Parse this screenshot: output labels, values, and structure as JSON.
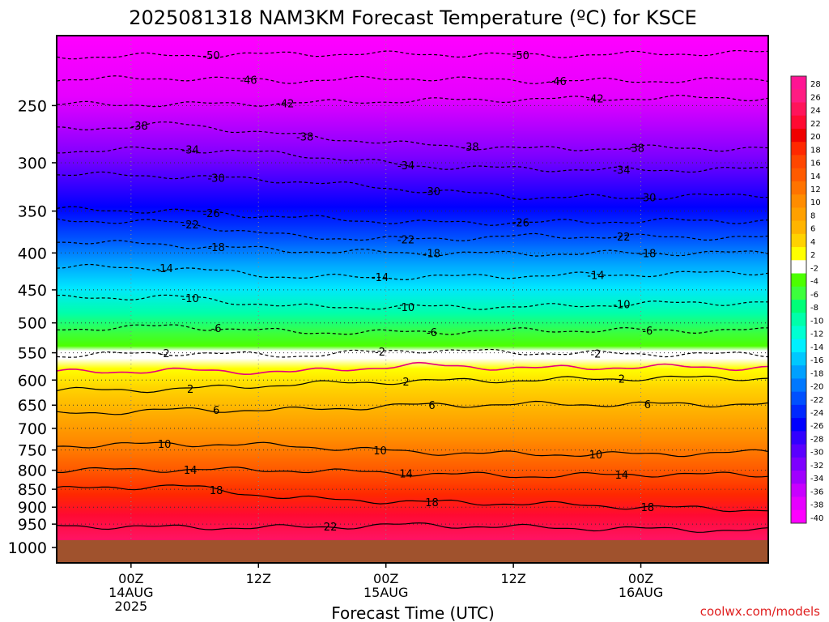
{
  "chart_data": {
    "type": "heatmap",
    "title": "2025081318 NAM3KM Forecast Temperature (ºC) for KSCE",
    "xlabel": "Forecast Time (UTC)",
    "ylabel": "",
    "credit": "coolwx.com/models",
    "x_range_hours": [
      -7,
      60
    ],
    "x_ticks": [
      {
        "hour": 0,
        "lines": [
          "00Z",
          "14AUG",
          "2025"
        ]
      },
      {
        "hour": 12,
        "lines": [
          "12Z"
        ]
      },
      {
        "hour": 24,
        "lines": [
          "00Z",
          "15AUG"
        ]
      },
      {
        "hour": 36,
        "lines": [
          "12Z"
        ]
      },
      {
        "hour": 48,
        "lines": [
          "00Z",
          "16AUG"
        ]
      }
    ],
    "y_axis": {
      "scale": "log-pressure",
      "range_hpa": [
        1000,
        200
      ],
      "ticks": [
        250,
        300,
        350,
        400,
        450,
        500,
        550,
        600,
        650,
        700,
        750,
        800,
        850,
        900,
        950,
        1000
      ]
    },
    "colorbar": {
      "labels": [
        "28",
        "26",
        "24",
        "22",
        "20",
        "18",
        "16",
        "14",
        "12",
        "10",
        "8",
        "6",
        "4",
        "2",
        "-2",
        "-4",
        "-6",
        "-8",
        "-10",
        "-12",
        "-14",
        "-16",
        "-18",
        "-20",
        "-22",
        "-24",
        "-26",
        "-28",
        "-30",
        "-32",
        "-34",
        "-36",
        "-38",
        "-40"
      ],
      "colors": [
        "#ff1493",
        "#ff1c82",
        "#ff145a",
        "#ff0a32",
        "#f00000",
        "#ff2800",
        "#ff4600",
        "#ff5a00",
        "#ff7300",
        "#ff8c00",
        "#ffa000",
        "#ffb400",
        "#ffd200",
        "#ffff00",
        "#ffffff",
        "#4cff00",
        "#3cff3c",
        "#00ff78",
        "#00ffaa",
        "#00ffd2",
        "#00f0ff",
        "#00c8ff",
        "#00a0ff",
        "#0078ff",
        "#0050ff",
        "#0028ff",
        "#0000ff",
        "#3200ff",
        "#5a00ff",
        "#7d00ff",
        "#a000ff",
        "#c800ff",
        "#e600ff",
        "#ff00ff"
      ]
    },
    "contours": [
      {
        "value": -50,
        "style": "dashed",
        "pressure_hpa": [
          214,
          213,
          212,
          212,
          213,
          212,
          211
        ],
        "labels": [
          "-50",
          "-50"
        ]
      },
      {
        "value": -46,
        "style": "dashed",
        "pressure_hpa": [
          230,
          229,
          231,
          229,
          231,
          231,
          230
        ],
        "labels": [
          "-46",
          "-46"
        ]
      },
      {
        "value": -42,
        "style": "dashed",
        "pressure_hpa": [
          249,
          249,
          248,
          246,
          245,
          244,
          244
        ],
        "labels": [
          "-42",
          "-42"
        ]
      },
      {
        "value": -38,
        "style": "dashed",
        "pressure_hpa": [
          270,
          265,
          275,
          283,
          287,
          286,
          287
        ],
        "labels": [
          "-38",
          "-38",
          "-38",
          "-38"
        ]
      },
      {
        "value": -34,
        "style": "dashed",
        "pressure_hpa": [
          289,
          287,
          292,
          303,
          306,
          307,
          306
        ],
        "labels": [
          "-34",
          "-34",
          "-34"
        ]
      },
      {
        "value": -30,
        "style": "dashed",
        "pressure_hpa": [
          311,
          313,
          318,
          327,
          335,
          335,
          332
        ],
        "labels": [
          "-30",
          "-30",
          "-30"
        ]
      },
      {
        "value": -26,
        "style": "dashed",
        "pressure_hpa": [
          348,
          350,
          357,
          363,
          363,
          361,
          361
        ],
        "labels": [
          "-26",
          "-26"
        ]
      },
      {
        "value": -22,
        "style": "dashed",
        "pressure_hpa": [
          360,
          363,
          380,
          383,
          379,
          380,
          381
        ],
        "labels": [
          "-22",
          "-22",
          "-22"
        ]
      },
      {
        "value": -18,
        "style": "dashed",
        "pressure_hpa": [
          385,
          390,
          397,
          400,
          401,
          400,
          400
        ],
        "labels": [
          "-18",
          "-18",
          "-18"
        ]
      },
      {
        "value": -14,
        "style": "dashed",
        "pressure_hpa": [
          418,
          420,
          432,
          432,
          430,
          428,
          425
        ],
        "labels": [
          "-14",
          "-14",
          "-14"
        ]
      },
      {
        "value": -10,
        "style": "dashed",
        "pressure_hpa": [
          462,
          460,
          475,
          475,
          475,
          470,
          468
        ],
        "labels": [
          "-10",
          "-10",
          "-10"
        ]
      },
      {
        "value": -6,
        "style": "dashed",
        "pressure_hpa": [
          510,
          505,
          515,
          515,
          512,
          512,
          512
        ],
        "labels": [
          "-6",
          "-6",
          "-6"
        ]
      },
      {
        "value": -2,
        "style": "dashed",
        "pressure_hpa": [
          555,
          550,
          555,
          545,
          550,
          552,
          553
        ],
        "labels": [
          "-2",
          "-2",
          "-2"
        ]
      },
      {
        "value": 2,
        "style": "solid",
        "pressure_hpa": [
          620,
          618,
          608,
          602,
          600,
          596,
          596
        ],
        "labels": [
          "2",
          "2",
          "2"
        ]
      },
      {
        "value": 6,
        "style": "solid",
        "pressure_hpa": [
          668,
          660,
          660,
          650,
          648,
          648,
          648
        ],
        "labels": [
          "6",
          "6",
          "6"
        ]
      },
      {
        "value": 10,
        "style": "solid",
        "pressure_hpa": [
          740,
          735,
          740,
          755,
          760,
          760,
          755
        ],
        "labels": [
          "10",
          "10",
          "10"
        ]
      },
      {
        "value": 14,
        "style": "solid",
        "pressure_hpa": [
          800,
          798,
          800,
          808,
          815,
          810,
          812
        ],
        "labels": [
          "14",
          "14",
          "14"
        ]
      },
      {
        "value": 18,
        "style": "solid",
        "pressure_hpa": [
          850,
          840,
          875,
          885,
          890,
          900,
          908
        ],
        "labels": [
          "18",
          "18",
          "18"
        ]
      },
      {
        "value": 22,
        "style": "solid",
        "pressure_hpa": [
          955,
          960,
          960,
          952,
          960,
          965,
          970
        ],
        "labels": [
          "22"
        ]
      }
    ],
    "zero_isotherm_pressure_hpa": [
      585,
      582,
      585,
      572,
      578,
      575,
      577
    ],
    "surface": {
      "pressure_hpa": 1000,
      "color": "#a0522d"
    },
    "grid": true,
    "legend_position": "right"
  }
}
